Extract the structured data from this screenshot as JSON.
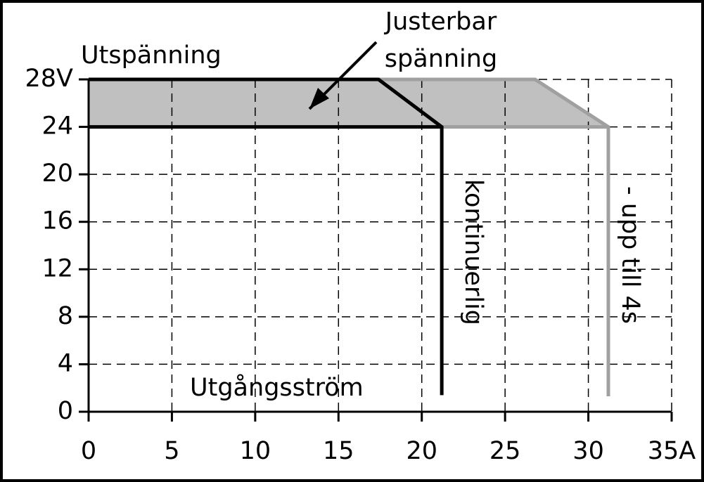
{
  "chart_data": {
    "type": "line",
    "xlim": [
      0,
      35
    ],
    "ylim": [
      0,
      28
    ],
    "xticks": [
      0,
      5,
      10,
      15,
      20,
      25,
      30,
      {
        "value": 35,
        "label": "35A"
      }
    ],
    "yticks": [
      0,
      4,
      8,
      12,
      16,
      20,
      24,
      {
        "value": 28,
        "label": "28V"
      }
    ],
    "grid": true,
    "area": {
      "color": "#c0c0c0",
      "x": [
        0,
        26.8,
        31.2
      ],
      "values": [
        28,
        28,
        24
      ],
      "fill_to": 24
    },
    "series": [
      {
        "color": "#000000",
        "x": [
          0,
          17.4,
          21.2,
          21.2
        ],
        "values": [
          28,
          28,
          24,
          1.4
        ]
      },
      {
        "color": "#000000",
        "x": [
          0,
          21.2
        ],
        "values": [
          24,
          24
        ]
      },
      {
        "color": "#a0a0a0",
        "x": [
          17.4,
          26.8,
          31.2,
          31.2
        ],
        "values": [
          28,
          28,
          24,
          1.3
        ]
      },
      {
        "color": "#a0a0a0",
        "x": [
          21.2,
          31.2
        ],
        "values": [
          24,
          24
        ]
      }
    ],
    "annotations": [
      "Utspänning",
      "Justerbar",
      "spänning",
      "Utgångsström",
      "kontinuerlig",
      "- upp till 4s"
    ]
  }
}
